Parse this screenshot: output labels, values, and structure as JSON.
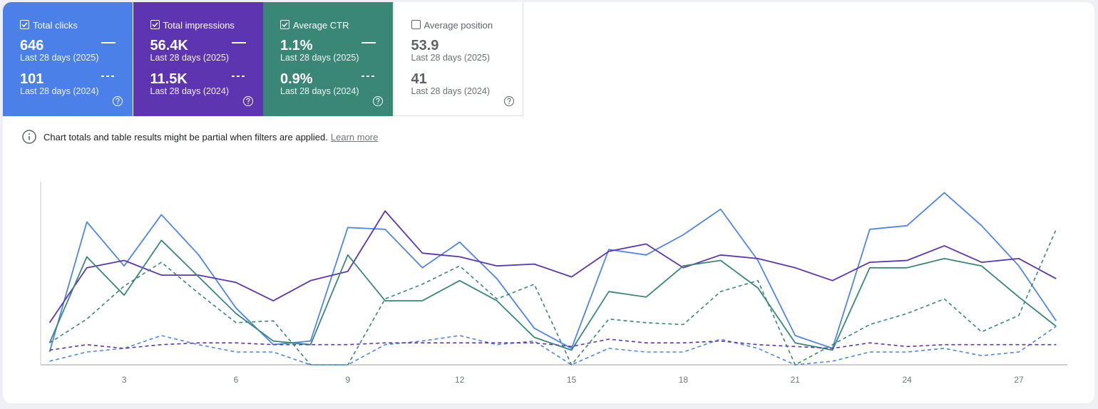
{
  "cards": [
    {
      "label": "Total clicks",
      "checked": true,
      "color": "#4a80e8",
      "value": "646",
      "period": "Last 28 days (2025)",
      "value_prev": "101",
      "period_prev": "Last 28 days (2024)"
    },
    {
      "label": "Total impressions",
      "checked": true,
      "color": "#5e35b1",
      "value": "56.4K",
      "period": "Last 28 days (2025)",
      "value_prev": "11.5K",
      "period_prev": "Last 28 days (2024)"
    },
    {
      "label": "Average CTR",
      "checked": true,
      "color": "#3a8777",
      "value": "1.1%",
      "period": "Last 28 days (2025)",
      "value_prev": "0.9%",
      "period_prev": "Last 28 days (2024)"
    },
    {
      "label": "Average position",
      "checked": false,
      "color": "#ffffff",
      "value": "53.9",
      "period": "Last 28 days (2025)",
      "value_prev": "41",
      "period_prev": "Last 28 days (2024)"
    }
  ],
  "info": {
    "text": "Chart totals and table results might be partial when filters are applied.",
    "link": "Learn more"
  },
  "chart_data": {
    "type": "line",
    "x": [
      1,
      2,
      3,
      4,
      5,
      6,
      7,
      8,
      9,
      10,
      11,
      12,
      13,
      14,
      15,
      16,
      17,
      18,
      19,
      20,
      21,
      22,
      23,
      24,
      25,
      26,
      27,
      28
    ],
    "xlim": [
      0.76,
      28.3
    ],
    "xticks": [
      3,
      6,
      9,
      12,
      15,
      18,
      21,
      24,
      27
    ],
    "ylim": [
      0,
      100
    ],
    "series": [
      {
        "color": "#4e85e8",
        "dashed": false,
        "values": [
          7,
          78,
          54,
          82,
          60,
          31,
          11,
          13,
          75,
          74,
          53,
          67,
          47,
          20,
          9,
          63,
          60,
          71,
          85,
          57,
          16,
          9,
          74,
          76,
          94,
          76,
          54,
          24
        ]
      },
      {
        "color": "#5e35b1",
        "dashed": false,
        "values": [
          23,
          53,
          57,
          49,
          49,
          45,
          35,
          46,
          51,
          84,
          61,
          59,
          54,
          55,
          48,
          62,
          66,
          53,
          60,
          58,
          53,
          46,
          56,
          57,
          65,
          56,
          58,
          47
        ]
      },
      {
        "color": "#3a8777",
        "dashed": false,
        "values": [
          12,
          59,
          38,
          68,
          48,
          28,
          13,
          11,
          60,
          35,
          35,
          46,
          35,
          15,
          8,
          40,
          37,
          54,
          57,
          42,
          12,
          8,
          53,
          53,
          58,
          54,
          37,
          21
        ]
      },
      {
        "color": "#4e85e8",
        "dashed": true,
        "values": [
          2,
          7,
          9,
          16,
          11,
          7,
          7,
          0,
          0,
          11,
          13,
          16,
          11,
          13,
          0,
          9,
          7,
          7,
          14,
          9,
          0,
          2,
          7,
          7,
          9,
          5,
          7,
          21
        ]
      },
      {
        "color": "#5e35b1",
        "dashed": true,
        "values": [
          8,
          11,
          9,
          11,
          12,
          12,
          11,
          11,
          11,
          12,
          12,
          12,
          12,
          12,
          10,
          14,
          12,
          12,
          13,
          11,
          10,
          9,
          12,
          10,
          11,
          11,
          11,
          11
        ]
      },
      {
        "color": "#3a8777",
        "dashed": true,
        "values": [
          12,
          25,
          43,
          56,
          39,
          23,
          24,
          0,
          0,
          36,
          44,
          54,
          36,
          44,
          0,
          25,
          23,
          22,
          40,
          46,
          0,
          11,
          22,
          28,
          36,
          18,
          27,
          74
        ]
      }
    ]
  }
}
